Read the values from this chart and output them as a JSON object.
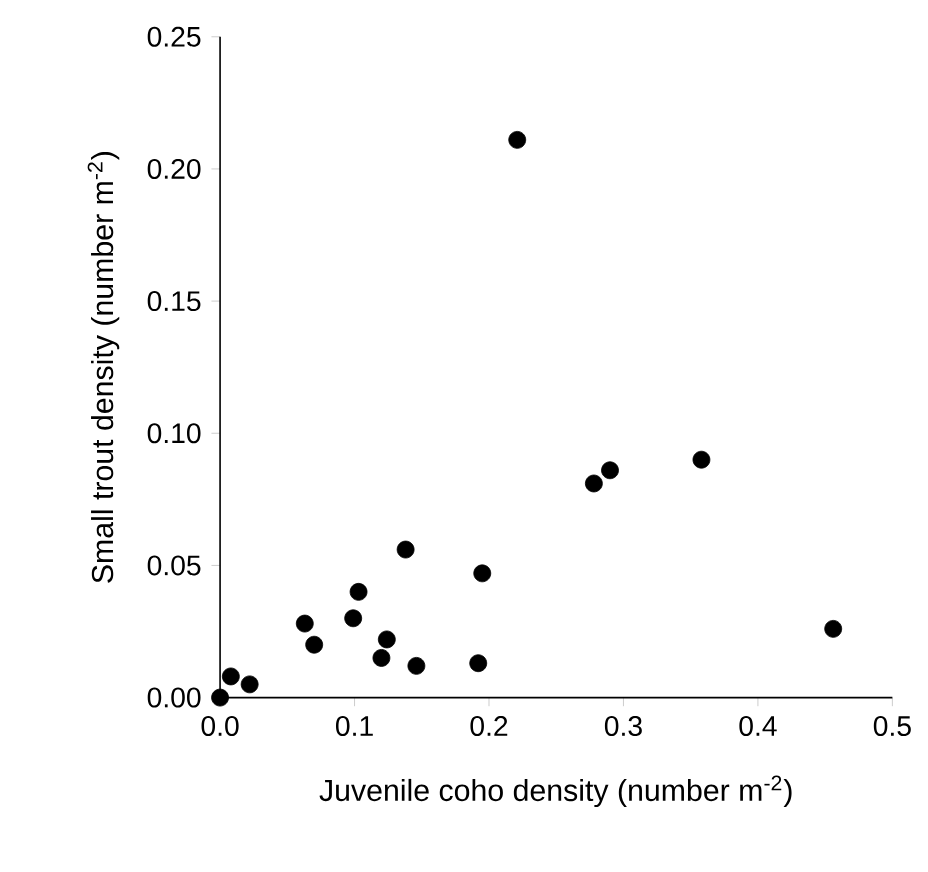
{
  "chart_data": {
    "type": "scatter",
    "xlabel": "Juvenile coho density (number m$^{-2}$)",
    "ylabel": "Small trout density (number m$^{-2}$)",
    "x": [
      0.0,
      0.008,
      0.022,
      0.063,
      0.07,
      0.099,
      0.103,
      0.124,
      0.12,
      0.138,
      0.146,
      0.192,
      0.195,
      0.221,
      0.278,
      0.29,
      0.358,
      0.456
    ],
    "values": [
      0.0,
      0.008,
      0.005,
      0.028,
      0.02,
      0.03,
      0.04,
      0.022,
      0.015,
      0.056,
      0.012,
      0.013,
      0.047,
      0.211,
      0.081,
      0.086,
      0.09,
      0.026
    ],
    "color": "#000000",
    "marker": "circle",
    "grid": false,
    "xlim": [
      0,
      0.5
    ],
    "ylim": [
      0,
      0.25
    ],
    "xticks": [
      {
        "value": 0,
        "label": "0.0"
      },
      0.1,
      0.2,
      0.3,
      0.4,
      0.5
    ],
    "yticks": [
      {
        "value": 0,
        "label": "0.00"
      },
      0.05,
      {
        "value": 0.1,
        "label": "0.10"
      },
      0.15,
      {
        "value": 0.2,
        "label": "0.20"
      },
      0.25
    ]
  }
}
